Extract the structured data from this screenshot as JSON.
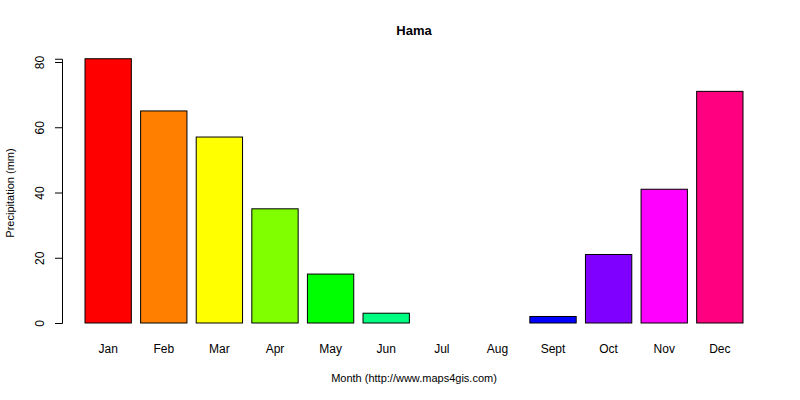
{
  "chart_data": {
    "type": "bar",
    "title": "Hama",
    "x_label": "Month (http://www.maps4gis.com)",
    "y_label": "Precipitation (mm)",
    "categories": [
      "Jan",
      "Feb",
      "Mar",
      "Apr",
      "May",
      "Jun",
      "Jul",
      "Aug",
      "Sept",
      "Oct",
      "Nov",
      "Dec"
    ],
    "values": [
      81,
      65,
      57,
      35,
      15,
      3,
      0,
      0,
      2,
      21,
      41,
      71
    ],
    "colors": [
      "#ff0000",
      "#ff8000",
      "#ffff00",
      "#80ff00",
      "#00ff00",
      "#00ff80",
      "#00ffff",
      "#0080ff",
      "#0000ff",
      "#8000ff",
      "#ff00ff",
      "#ff0080"
    ],
    "ylim": [
      0,
      81
    ],
    "yticks": [
      0,
      20,
      40,
      60,
      80
    ],
    "grid": false
  }
}
